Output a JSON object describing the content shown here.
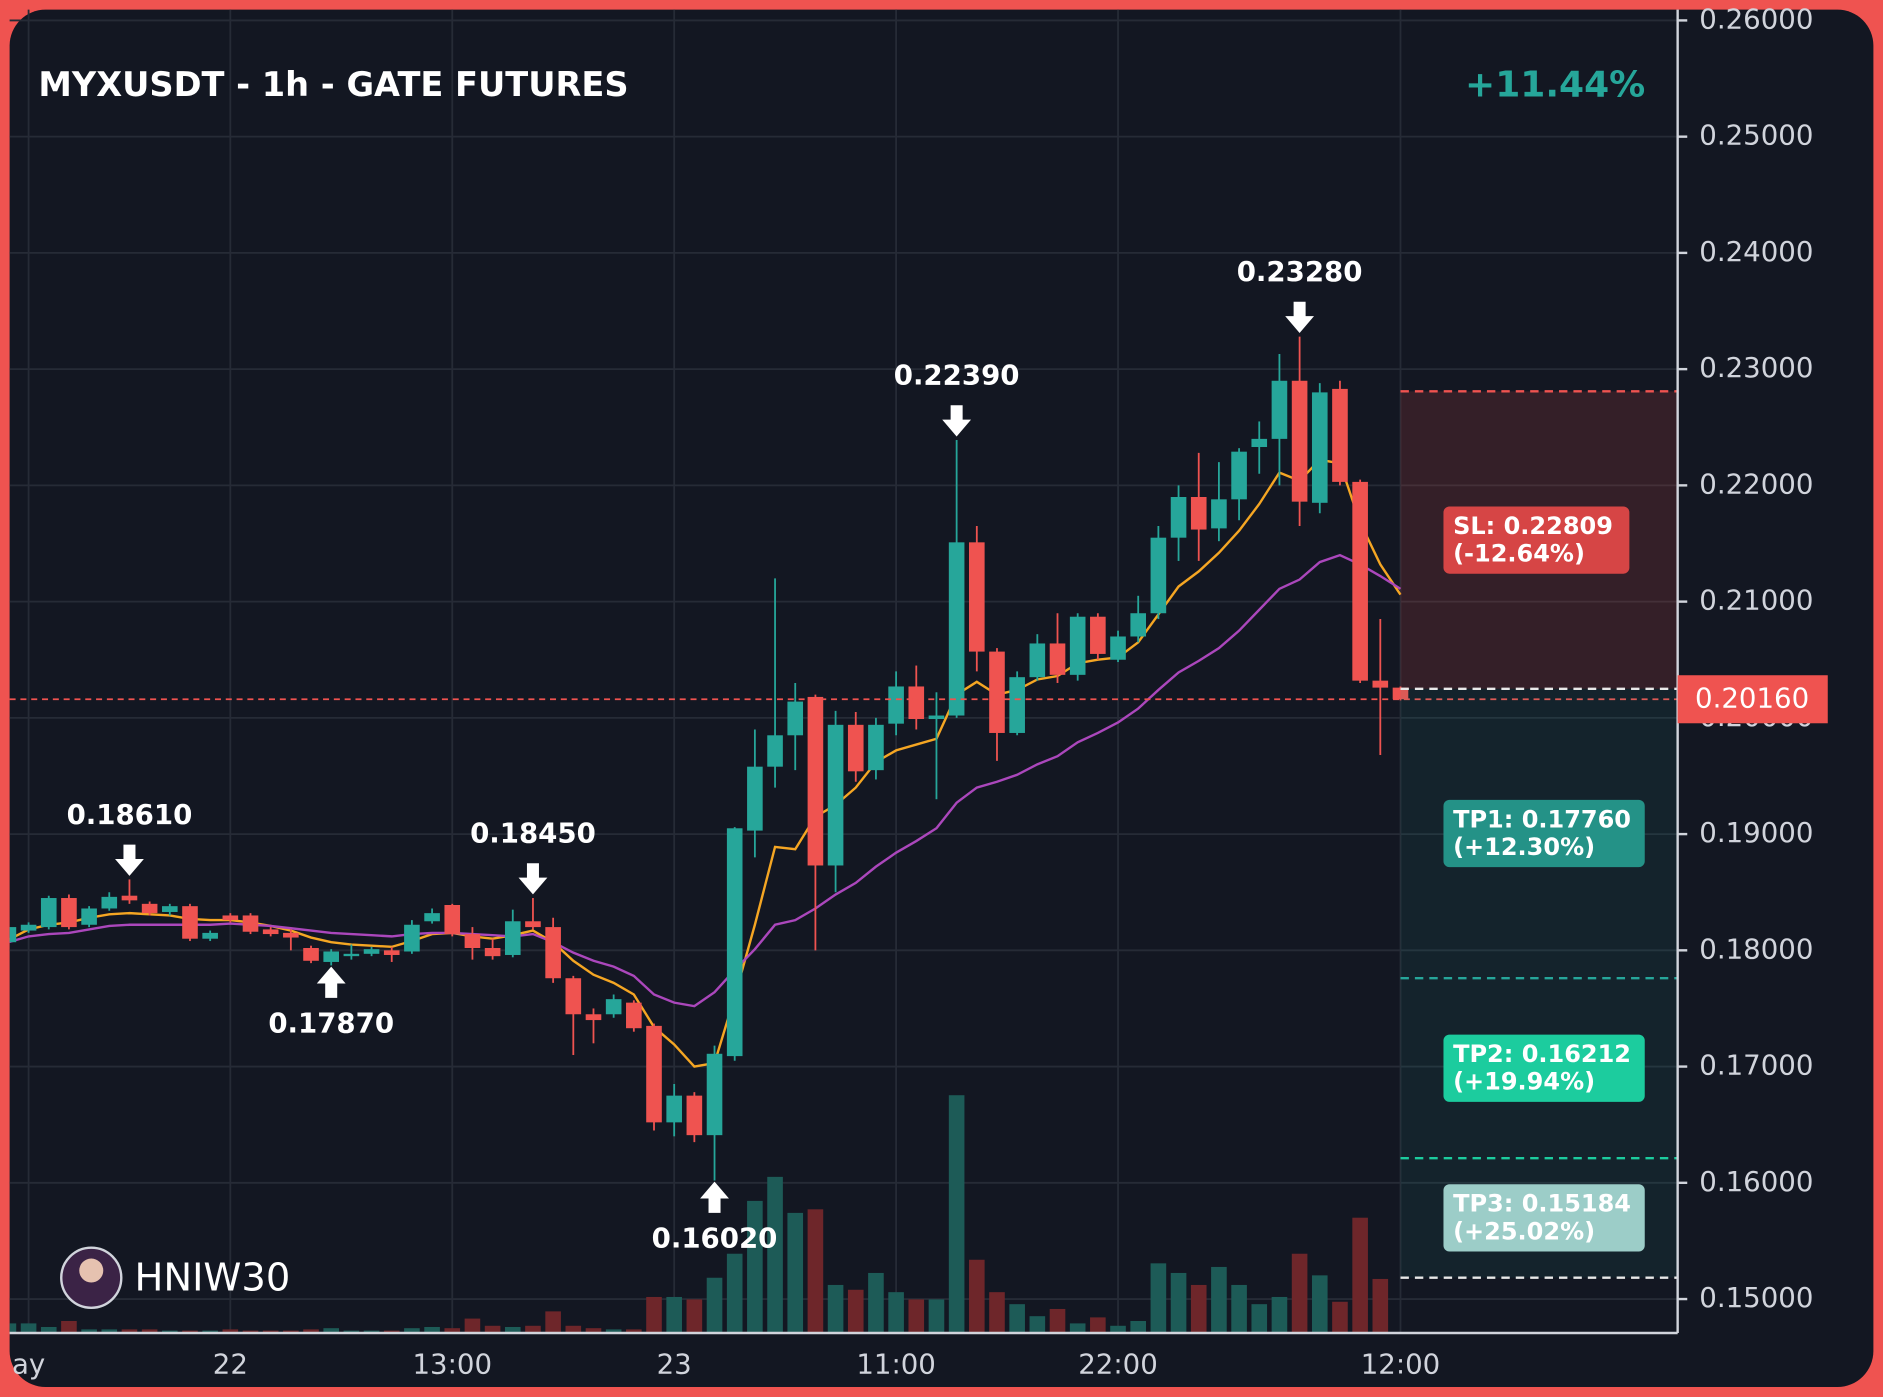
{
  "chart_data": {
    "type": "candlestick",
    "title": "MYXUSDT - 1h - GATE FUTURES",
    "change_label": "+11.44%",
    "watermark": "HNIW30",
    "up_color": "#26a69a",
    "down_color": "#ef5350",
    "up_volume_color": "#1d5b57",
    "down_volume_color": "#6e262a",
    "grid": true,
    "categories": [
      null,
      "ay",
      null,
      null,
      null,
      null,
      null,
      null,
      null,
      null,
      null,
      "22",
      null,
      null,
      null,
      null,
      null,
      null,
      null,
      null,
      null,
      null,
      "13:00",
      null,
      null,
      null,
      null,
      null,
      null,
      null,
      null,
      null,
      null,
      "23",
      null,
      null,
      null,
      null,
      null,
      null,
      null,
      null,
      null,
      null,
      "11:00",
      null,
      null,
      null,
      null,
      null,
      null,
      null,
      null,
      null,
      null,
      "22:00",
      null,
      null,
      null,
      null,
      null,
      null,
      null,
      null,
      null,
      null,
      null,
      null,
      null,
      "12:00"
    ],
    "open": [
      0.1807,
      0.1817,
      0.182,
      0.1845,
      0.1822,
      0.1836,
      0.1847,
      0.184,
      0.1833,
      0.1838,
      0.181,
      0.183,
      0.183,
      0.1818,
      0.1815,
      0.1802,
      0.179,
      0.1795,
      0.1797,
      0.18,
      0.1799,
      0.1825,
      0.1839,
      0.1814,
      0.1802,
      0.1796,
      0.1825,
      0.182,
      0.1776,
      0.1745,
      0.1745,
      0.1755,
      0.1735,
      0.1652,
      0.1675,
      0.1641,
      0.1709,
      0.1903,
      0.1958,
      0.1985,
      0.2018,
      0.1873,
      0.1994,
      0.1955,
      0.1995,
      0.2027,
      0.1999,
      0.2002,
      0.2151,
      0.2057,
      0.1987,
      0.2035,
      0.2064,
      0.2037,
      0.2087,
      0.205,
      0.207,
      0.209,
      0.2155,
      0.219,
      0.2163,
      0.2188,
      0.2233,
      0.224,
      0.229,
      0.2185,
      0.2283,
      0.2203,
      0.2032,
      0.2026
    ],
    "high": [
      0.1822,
      0.1824,
      0.1847,
      0.1848,
      0.1838,
      0.185,
      0.1861,
      0.1842,
      0.184,
      0.184,
      0.1817,
      0.1832,
      0.1832,
      0.182,
      0.1818,
      0.1804,
      0.1801,
      0.1805,
      0.1803,
      0.1803,
      0.1826,
      0.1836,
      0.184,
      0.182,
      0.181,
      0.1835,
      0.1845,
      0.1828,
      0.1778,
      0.175,
      0.1762,
      0.1757,
      0.1737,
      0.1685,
      0.1678,
      0.1718,
      0.1906,
      0.199,
      0.212,
      0.203,
      0.202,
      0.2006,
      0.2005,
      0.2,
      0.204,
      0.2045,
      0.2022,
      0.2239,
      0.2165,
      0.206,
      0.204,
      0.2072,
      0.209,
      0.209,
      0.209,
      0.2075,
      0.2105,
      0.2165,
      0.22,
      0.2228,
      0.222,
      0.2232,
      0.2255,
      0.2313,
      0.2328,
      0.2288,
      0.229,
      0.2205,
      0.2085,
      0.2027
    ],
    "low": [
      0.1805,
      0.1815,
      0.1818,
      0.1818,
      0.182,
      0.1834,
      0.184,
      0.183,
      0.183,
      0.1808,
      0.1808,
      0.1824,
      0.1814,
      0.1812,
      0.18,
      0.1789,
      0.1787,
      0.1792,
      0.1795,
      0.179,
      0.1797,
      0.1823,
      0.1812,
      0.1792,
      0.1792,
      0.1794,
      0.1818,
      0.1772,
      0.171,
      0.172,
      0.1742,
      0.173,
      0.1645,
      0.164,
      0.1635,
      0.1602,
      0.1705,
      0.188,
      0.194,
      0.1955,
      0.18,
      0.185,
      0.1945,
      0.1947,
      0.1985,
      0.199,
      0.193,
      0.2,
      0.204,
      0.1963,
      0.1985,
      0.2032,
      0.203,
      0.2032,
      0.205,
      0.2048,
      0.2065,
      0.2085,
      0.2135,
      0.2135,
      0.2152,
      0.217,
      0.221,
      0.22,
      0.2165,
      0.2176,
      0.22,
      0.203,
      0.1968,
      0.2015
    ],
    "close": [
      0.182,
      0.1822,
      0.1845,
      0.182,
      0.1836,
      0.1846,
      0.1843,
      0.1832,
      0.1838,
      0.181,
      0.1815,
      0.1826,
      0.1816,
      0.1814,
      0.1811,
      0.1791,
      0.1799,
      0.1797,
      0.1801,
      0.1796,
      0.1822,
      0.1832,
      0.1814,
      0.1802,
      0.1795,
      0.1825,
      0.182,
      0.1776,
      0.1745,
      0.174,
      0.1758,
      0.1733,
      0.1652,
      0.1675,
      0.1641,
      0.1711,
      0.1905,
      0.1958,
      0.1985,
      0.2014,
      0.1873,
      0.1994,
      0.1954,
      0.1994,
      0.2027,
      0.1999,
      0.2002,
      0.2151,
      0.2057,
      0.1987,
      0.2035,
      0.2064,
      0.2037,
      0.2087,
      0.2055,
      0.207,
      0.209,
      0.2155,
      0.219,
      0.2162,
      0.2188,
      0.2229,
      0.224,
      0.229,
      0.2186,
      0.228,
      0.2203,
      0.2032,
      0.2026,
      0.2016
    ],
    "volume": [
      8,
      8,
      5,
      10,
      3,
      3,
      3,
      3,
      2,
      2,
      2,
      3,
      2,
      2,
      2,
      3,
      4,
      2,
      2,
      2,
      4,
      5,
      4,
      12,
      6,
      5,
      6,
      18,
      6,
      4,
      3,
      3,
      30,
      30,
      28,
      46,
      66,
      110,
      130,
      100,
      103,
      40,
      36,
      50,
      34,
      28,
      28,
      198,
      61,
      34,
      24,
      14,
      20,
      8,
      13,
      6,
      10,
      58,
      50,
      40,
      55,
      40,
      24,
      30,
      66,
      48,
      26,
      96,
      45,
      0
    ],
    "series": [
      {
        "color": "#f5a623",
        "values": [
          0.1809,
          0.1818,
          0.1822,
          0.1824,
          0.1828,
          0.1831,
          0.1832,
          0.1831,
          0.183,
          0.1827,
          0.1826,
          0.1826,
          0.1824,
          0.1821,
          0.1817,
          0.1811,
          0.1807,
          0.1805,
          0.1804,
          0.1803,
          0.1808,
          0.1814,
          0.1815,
          0.1812,
          0.181,
          0.1813,
          0.1817,
          0.1807,
          0.1791,
          0.1779,
          0.1772,
          0.1762,
          0.1734,
          0.1719,
          0.17,
          0.1703,
          0.176,
          0.1822,
          0.1889,
          0.1887,
          0.1915,
          0.1925,
          0.194,
          0.1962,
          0.1972,
          0.1977,
          0.1982,
          0.202,
          0.2031,
          0.202,
          0.2024,
          0.2033,
          0.2036,
          0.2047,
          0.205,
          0.2052,
          0.2065,
          0.2089,
          0.2113,
          0.2126,
          0.2142,
          0.2161,
          0.2184,
          0.2211,
          0.2204,
          0.2222,
          0.2219,
          0.2168,
          0.2132,
          0.2106
        ]
      },
      {
        "color": "#ab47bc",
        "values": [
          0.1807,
          0.1812,
          0.1814,
          0.1815,
          0.1818,
          0.1821,
          0.1822,
          0.1822,
          0.1822,
          0.1822,
          0.1822,
          0.1823,
          0.1822,
          0.1821,
          0.1819,
          0.1817,
          0.1815,
          0.1814,
          0.1813,
          0.1812,
          0.1814,
          0.1815,
          0.1815,
          0.1814,
          0.1813,
          0.1812,
          0.1814,
          0.1807,
          0.1798,
          0.1791,
          0.1786,
          0.1778,
          0.1762,
          0.1755,
          0.1752,
          0.1764,
          0.1783,
          0.1801,
          0.1822,
          0.1826,
          0.1836,
          0.1848,
          0.1858,
          0.1872,
          0.1884,
          0.1894,
          0.1905,
          0.1927,
          0.194,
          0.1945,
          0.1951,
          0.196,
          0.1967,
          0.1979,
          0.1987,
          0.1996,
          0.2008,
          0.2024,
          0.2039,
          0.2049,
          0.206,
          0.2075,
          0.2093,
          0.2111,
          0.2119,
          0.2134,
          0.214,
          0.2132,
          0.2122,
          0.2111
        ]
      }
    ],
    "ylim": [
      0.14708,
      0.26093
    ],
    "yticks": [
      {
        "value": 0.15,
        "label": "0.15000"
      },
      {
        "value": 0.16,
        "label": "0.16000"
      },
      {
        "value": 0.17,
        "label": "0.17000"
      },
      {
        "value": 0.18,
        "label": "0.18000"
      },
      {
        "value": 0.19,
        "label": "0.19000"
      },
      {
        "value": 0.2,
        "label": "0.20000"
      },
      {
        "value": 0.21,
        "label": "0.21000"
      },
      {
        "value": 0.22,
        "label": "0.22000"
      },
      {
        "value": 0.23,
        "label": "0.23000"
      },
      {
        "value": 0.24,
        "label": "0.24000"
      },
      {
        "value": 0.25,
        "label": "0.25000"
      },
      {
        "value": 0.26,
        "label": "0.26000"
      }
    ],
    "current_price": {
      "value": 0.2016,
      "label": "0.20160",
      "color": "#ef5350"
    },
    "annotations": [
      {
        "value": 0.1861,
        "label": "0.18610",
        "kind": "high"
      },
      {
        "value": 0.1787,
        "label": "0.17870",
        "kind": "low"
      },
      {
        "value": 0.1845,
        "label": "0.18450",
        "kind": "high"
      },
      {
        "value": 0.1602,
        "label": "0.16020",
        "kind": "low"
      },
      {
        "value": 0.2239,
        "label": "0.22390",
        "kind": "high"
      },
      {
        "value": 0.2328,
        "label": "0.23280",
        "kind": "high"
      }
    ],
    "position": {
      "entry": 0.2025,
      "stop_loss": {
        "value": 0.22809,
        "label": "SL: 0.22809",
        "change": "(-12.64%)",
        "color": "#d64545",
        "line_color": "#ef5350"
      },
      "take_profits": [
        {
          "value": 0.1776,
          "label": "TP1: 0.17760",
          "change": "(+12.30%)",
          "color": "#249287",
          "line_color": "#26a69a"
        },
        {
          "value": 0.16212,
          "label": "TP2: 0.16212",
          "change": "(+19.94%)",
          "color": "#1ccc9e",
          "line_color": "#1ccc9e"
        },
        {
          "value": 0.15184,
          "label": "TP3: 0.15184",
          "change": "(+25.02%)",
          "color": "#9ccdc8",
          "line_color": "#e8e8e8"
        }
      ]
    }
  }
}
